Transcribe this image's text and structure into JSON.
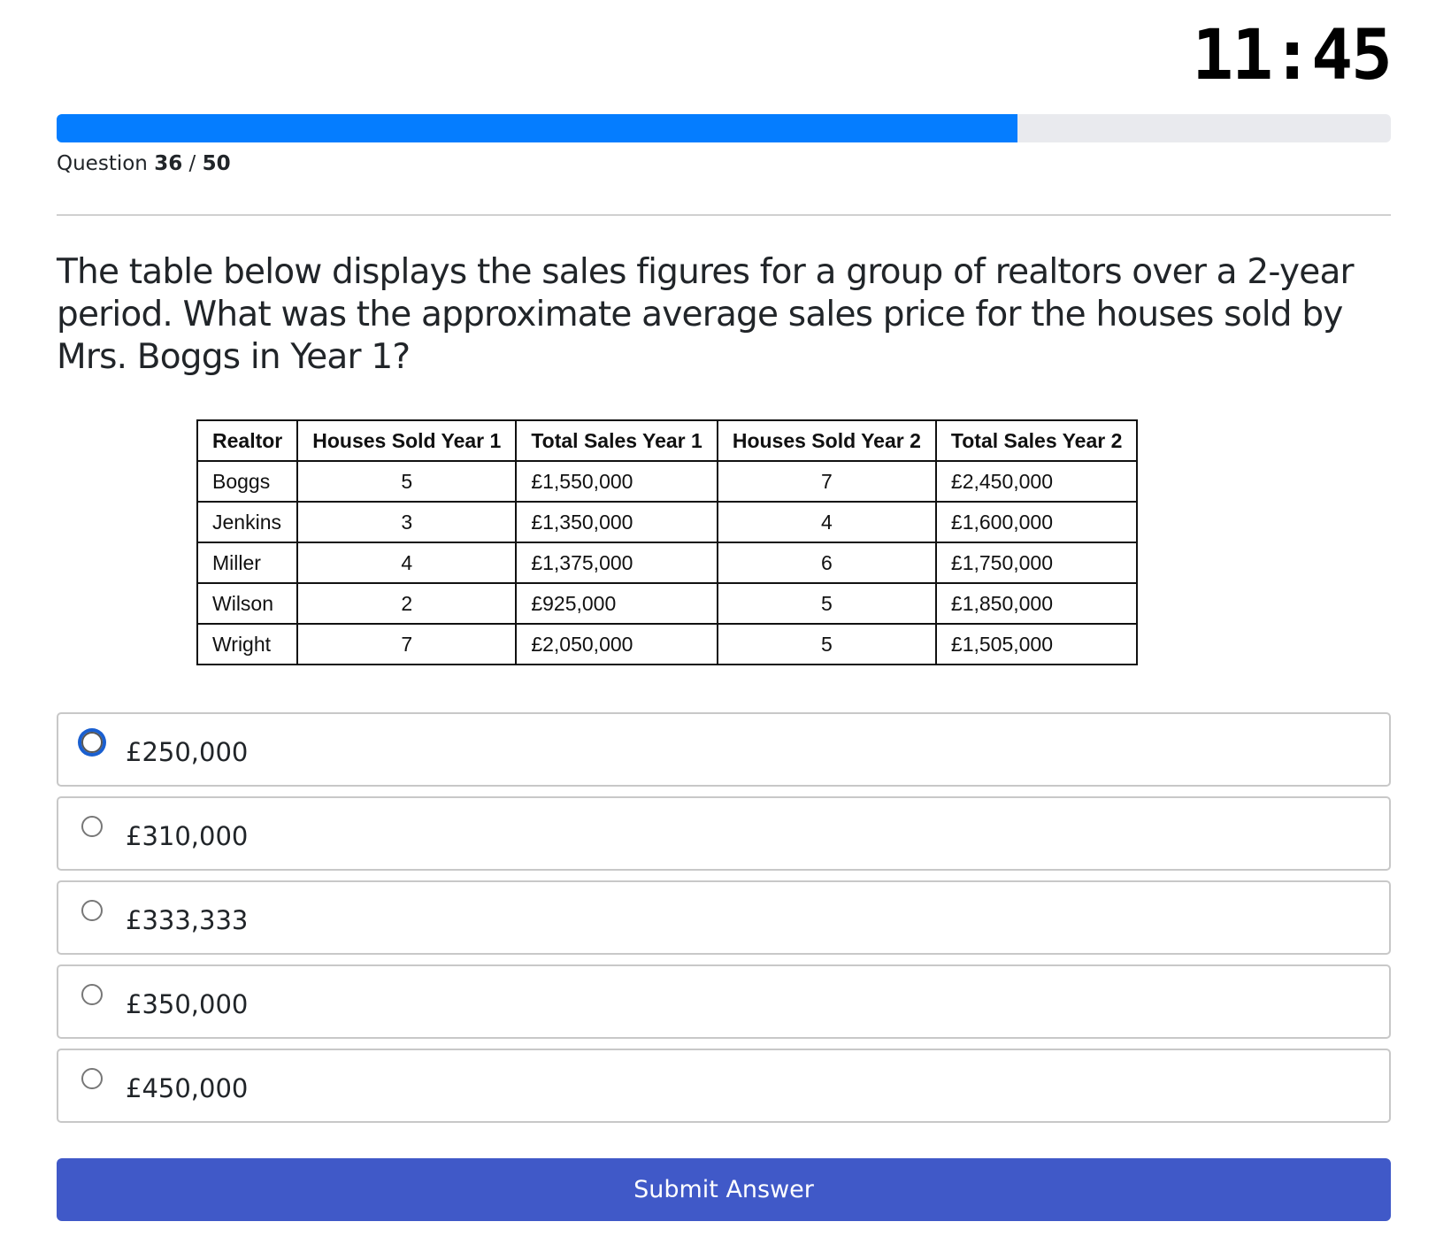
{
  "timer": "11:45",
  "progress": {
    "current": 36,
    "total": 50,
    "percent": 72,
    "fill_color": "#057dff",
    "label_prefix": "Question",
    "separator": "/"
  },
  "question": "The table below displays the sales figures for a group of realtors over a 2-year period. What was the approximate average sales price for the houses sold by Mrs. Boggs in Year 1?",
  "table": {
    "headers": [
      "Realtor",
      "Houses Sold Year 1",
      "Total Sales Year 1",
      "Houses Sold Year 2",
      "Total Sales Year 2"
    ],
    "rows": [
      [
        "Boggs",
        "5",
        "£1,550,000",
        "7",
        "£2,450,000"
      ],
      [
        "Jenkins",
        "3",
        "£1,350,000",
        "4",
        "£1,600,000"
      ],
      [
        "Miller",
        "4",
        "£1,375,000",
        "6",
        "£1,750,000"
      ],
      [
        "Wilson",
        "2",
        "£925,000",
        "5",
        "£1,850,000"
      ],
      [
        "Wright",
        "7",
        "£2,050,000",
        "5",
        "£1,505,000"
      ]
    ]
  },
  "options": [
    {
      "label": "£250,000",
      "focused": true
    },
    {
      "label": "£310,000"
    },
    {
      "label": "£333,333"
    },
    {
      "label": "£350,000"
    },
    {
      "label": "£450,000"
    }
  ],
  "submit_label": "Submit Answer",
  "submit_color": "#4059c8"
}
